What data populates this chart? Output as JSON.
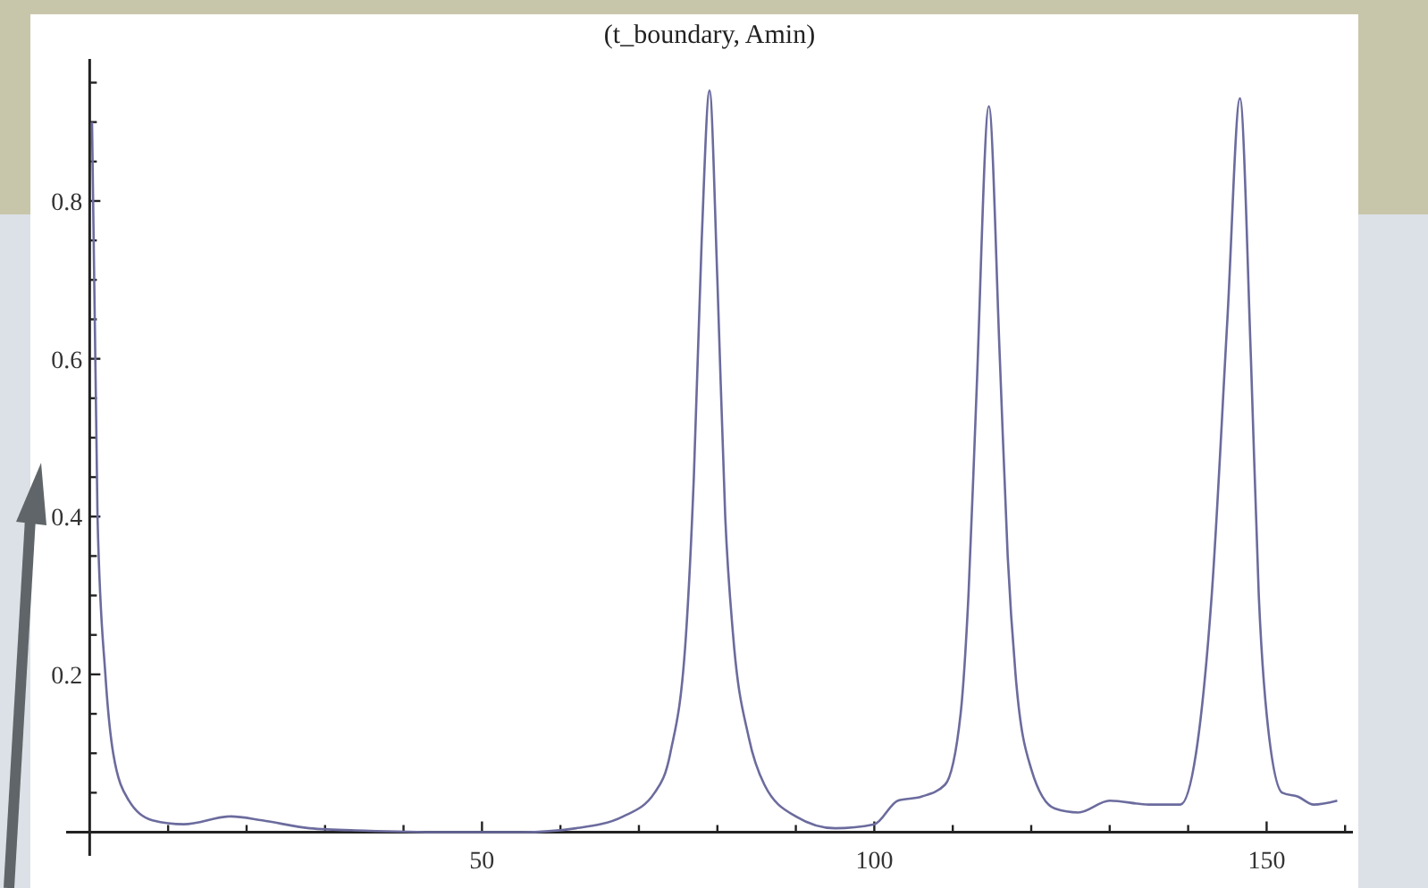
{
  "chart_data": {
    "type": "line",
    "title": "(t_boundary, Amin)",
    "x": [
      0.3,
      1,
      2,
      3,
      5,
      8,
      12,
      18,
      22,
      28,
      35,
      45,
      55,
      62,
      68,
      72,
      74,
      76,
      77,
      78,
      79,
      80,
      81,
      82,
      84,
      86,
      90,
      95,
      100,
      103,
      106,
      109,
      111,
      112,
      113,
      114.6,
      116,
      117,
      118,
      120,
      123,
      126,
      130,
      135,
      139,
      141,
      143,
      145,
      146.6,
      148,
      149,
      150,
      152,
      154,
      156,
      159
    ],
    "series": [
      {
        "color": "#6b6b9e",
        "values": [
          0.9,
          0.4,
          0.2,
          0.1,
          0.04,
          0.015,
          0.01,
          0.02,
          0.015,
          0.005,
          0.002,
          0,
          0,
          0.005,
          0.02,
          0.05,
          0.1,
          0.25,
          0.45,
          0.75,
          0.94,
          0.7,
          0.4,
          0.25,
          0.12,
          0.06,
          0.02,
          0.005,
          0.01,
          0.04,
          0.045,
          0.06,
          0.15,
          0.3,
          0.55,
          0.92,
          0.6,
          0.35,
          0.2,
          0.08,
          0.03,
          0.025,
          0.04,
          0.035,
          0.035,
          0.1,
          0.3,
          0.65,
          0.93,
          0.6,
          0.3,
          0.15,
          0.05,
          0.045,
          0.035,
          0.04
        ]
      }
    ],
    "xlim": [
      -3,
      161
    ],
    "ylim": [
      -0.03,
      0.98
    ],
    "xticks": [
      {
        "value": 10,
        "label": null
      },
      {
        "value": 20,
        "label": null
      },
      {
        "value": 30,
        "label": null
      },
      {
        "value": 40,
        "label": null
      },
      50,
      {
        "value": 60,
        "label": null
      },
      {
        "value": 70,
        "label": null
      },
      {
        "value": 80,
        "label": null
      },
      {
        "value": 90,
        "label": null
      },
      100,
      {
        "value": 110,
        "label": null
      },
      {
        "value": 120,
        "label": null
      },
      {
        "value": 130,
        "label": null
      },
      {
        "value": 140,
        "label": null
      },
      150,
      {
        "value": 160,
        "label": null
      }
    ],
    "yticks": [
      {
        "value": 0.05,
        "label": null
      },
      {
        "value": 0.1,
        "label": null
      },
      {
        "value": 0.15,
        "label": null
      },
      0.2,
      {
        "value": 0.25,
        "label": null
      },
      {
        "value": 0.3,
        "label": null
      },
      {
        "value": 0.35,
        "label": null
      },
      0.4,
      {
        "value": 0.45,
        "label": null
      },
      {
        "value": 0.5,
        "label": null
      },
      {
        "value": 0.55,
        "label": null
      },
      0.6,
      {
        "value": 0.65,
        "label": null
      },
      {
        "value": 0.7,
        "label": null
      },
      {
        "value": 0.75,
        "label": null
      },
      0.8,
      {
        "value": 0.85,
        "label": null
      },
      {
        "value": 0.9,
        "label": null
      },
      {
        "value": 0.95,
        "label": null
      }
    ],
    "grid": false,
    "marker": "none",
    "line_style": "solid"
  }
}
